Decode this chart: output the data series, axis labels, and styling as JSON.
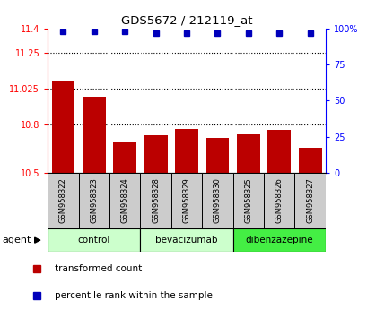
{
  "title": "GDS5672 / 212119_at",
  "samples": [
    "GSM958322",
    "GSM958323",
    "GSM958324",
    "GSM958328",
    "GSM958329",
    "GSM958330",
    "GSM958325",
    "GSM958326",
    "GSM958327"
  ],
  "bar_values": [
    11.075,
    10.975,
    10.69,
    10.735,
    10.775,
    10.72,
    10.74,
    10.77,
    10.655
  ],
  "percentile_values": [
    98,
    98,
    98,
    97,
    97,
    97,
    97,
    97,
    97
  ],
  "ylim_left": [
    10.5,
    11.4
  ],
  "ylim_right": [
    0,
    100
  ],
  "yticks_left": [
    10.5,
    10.8,
    11.025,
    11.25,
    11.4
  ],
  "yticks_right": [
    0,
    25,
    50,
    75,
    100
  ],
  "ytick_labels_left": [
    "10.5",
    "10.8",
    "11.025",
    "11.25",
    "11.4"
  ],
  "ytick_labels_right": [
    "0",
    "25",
    "50",
    "75",
    "100%"
  ],
  "bar_color": "#bb0000",
  "dot_color": "#0000bb",
  "groups": [
    {
      "label": "control",
      "indices": [
        0,
        1,
        2
      ],
      "color": "#ccffcc"
    },
    {
      "label": "bevacizumab",
      "indices": [
        3,
        4,
        5
      ],
      "color": "#ccffcc"
    },
    {
      "label": "dibenzazepine",
      "indices": [
        6,
        7,
        8
      ],
      "color": "#44ee44"
    }
  ],
  "legend_bar_label": "transformed count",
  "legend_dot_label": "percentile rank within the sample",
  "agent_label": "agent",
  "sample_box_color": "#cccccc",
  "plot_bg_color": "#ffffff"
}
